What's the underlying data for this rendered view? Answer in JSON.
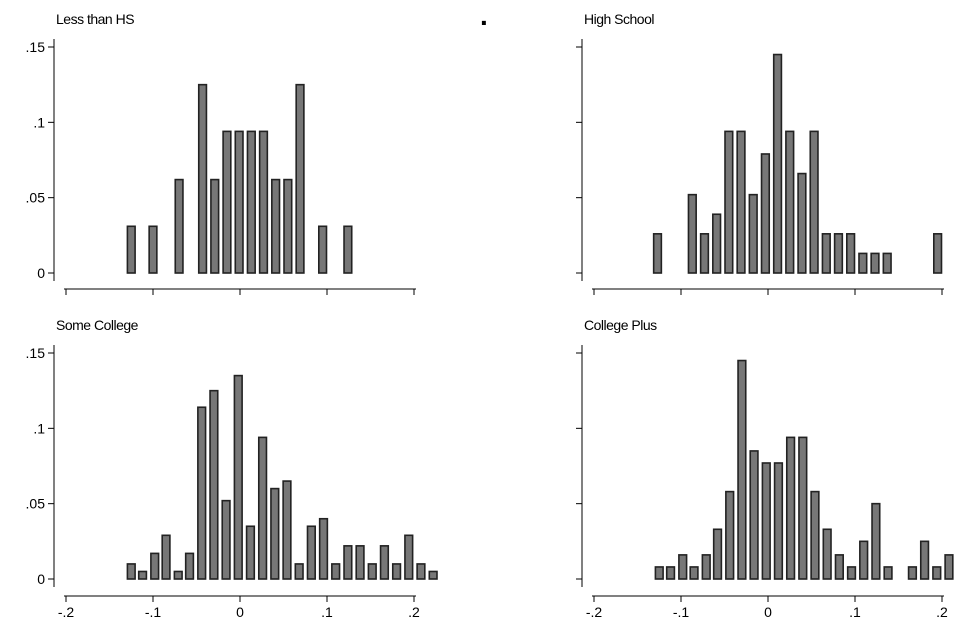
{
  "figure": {
    "center_mark": "."
  },
  "chart_data": [
    {
      "type": "bar",
      "title": "Less than HS",
      "xlim": [
        -0.2,
        0.2
      ],
      "ylim": [
        0,
        0.15
      ],
      "yticks": [
        0,
        0.05,
        0.1,
        0.15
      ],
      "ytick_labels": [
        "0",
        ".05",
        ".1",
        ".15"
      ],
      "xticks": [
        -0.2,
        -0.1,
        0,
        0.1,
        0.2
      ],
      "xtick_labels": [],
      "bar_width": 0.01,
      "bars": [
        {
          "x": -0.125,
          "y": 0.031
        },
        {
          "x": -0.1,
          "y": 0.031
        },
        {
          "x": -0.07,
          "y": 0.062
        },
        {
          "x": -0.043,
          "y": 0.125
        },
        {
          "x": -0.029,
          "y": 0.062
        },
        {
          "x": -0.015,
          "y": 0.094
        },
        {
          "x": -0.001,
          "y": 0.094
        },
        {
          "x": 0.013,
          "y": 0.094
        },
        {
          "x": 0.027,
          "y": 0.094
        },
        {
          "x": 0.041,
          "y": 0.062
        },
        {
          "x": 0.055,
          "y": 0.062
        },
        {
          "x": 0.069,
          "y": 0.125
        },
        {
          "x": 0.095,
          "y": 0.031
        },
        {
          "x": 0.124,
          "y": 0.031
        }
      ]
    },
    {
      "type": "bar",
      "title": "High School",
      "xlim": [
        -0.2,
        0.2
      ],
      "ylim": [
        0,
        0.15
      ],
      "yticks": [
        0,
        0.05,
        0.1,
        0.15
      ],
      "ytick_labels": [],
      "xticks": [
        -0.2,
        -0.1,
        0,
        0.1,
        0.2
      ],
      "xtick_labels": [],
      "bar_width": 0.01,
      "bars": [
        {
          "x": -0.127,
          "y": 0.026
        },
        {
          "x": -0.087,
          "y": 0.052
        },
        {
          "x": -0.073,
          "y": 0.026
        },
        {
          "x": -0.059,
          "y": 0.039
        },
        {
          "x": -0.045,
          "y": 0.094
        },
        {
          "x": -0.031,
          "y": 0.094
        },
        {
          "x": -0.017,
          "y": 0.052
        },
        {
          "x": -0.003,
          "y": 0.079
        },
        {
          "x": 0.011,
          "y": 0.145
        },
        {
          "x": 0.025,
          "y": 0.094
        },
        {
          "x": 0.039,
          "y": 0.066
        },
        {
          "x": 0.053,
          "y": 0.094
        },
        {
          "x": 0.067,
          "y": 0.026
        },
        {
          "x": 0.081,
          "y": 0.026
        },
        {
          "x": 0.095,
          "y": 0.026
        },
        {
          "x": 0.109,
          "y": 0.013
        },
        {
          "x": 0.123,
          "y": 0.013
        },
        {
          "x": 0.137,
          "y": 0.013
        },
        {
          "x": 0.195,
          "y": 0.026
        }
      ]
    },
    {
      "type": "bar",
      "title": "Some College",
      "xlim": [
        -0.2,
        0.2
      ],
      "ylim": [
        0,
        0.15
      ],
      "yticks": [
        0,
        0.05,
        0.1,
        0.15
      ],
      "ytick_labels": [
        "0",
        ".05",
        ".1",
        ".15"
      ],
      "xticks": [
        -0.2,
        -0.1,
        0,
        0.1,
        0.2
      ],
      "xtick_labels": [
        "-.2",
        "-.1",
        "0",
        ".1",
        ".2"
      ],
      "bar_width": 0.01,
      "bars": [
        {
          "x": -0.125,
          "y": 0.01
        },
        {
          "x": -0.112,
          "y": 0.005
        },
        {
          "x": -0.098,
          "y": 0.017
        },
        {
          "x": -0.085,
          "y": 0.029
        },
        {
          "x": -0.071,
          "y": 0.005
        },
        {
          "x": -0.058,
          "y": 0.017
        },
        {
          "x": -0.044,
          "y": 0.114
        },
        {
          "x": -0.03,
          "y": 0.125
        },
        {
          "x": -0.016,
          "y": 0.052
        },
        {
          "x": -0.002,
          "y": 0.135
        },
        {
          "x": 0.012,
          "y": 0.035
        },
        {
          "x": 0.026,
          "y": 0.094
        },
        {
          "x": 0.04,
          "y": 0.06
        },
        {
          "x": 0.054,
          "y": 0.065
        },
        {
          "x": 0.068,
          "y": 0.01
        },
        {
          "x": 0.082,
          "y": 0.035
        },
        {
          "x": 0.096,
          "y": 0.04
        },
        {
          "x": 0.11,
          "y": 0.01
        },
        {
          "x": 0.124,
          "y": 0.022
        },
        {
          "x": 0.138,
          "y": 0.022
        },
        {
          "x": 0.152,
          "y": 0.01
        },
        {
          "x": 0.166,
          "y": 0.022
        },
        {
          "x": 0.18,
          "y": 0.01
        },
        {
          "x": 0.194,
          "y": 0.029
        },
        {
          "x": 0.208,
          "y": 0.01
        },
        {
          "x": 0.222,
          "y": 0.005
        }
      ]
    },
    {
      "type": "bar",
      "title": "College Plus",
      "xlim": [
        -0.2,
        0.2
      ],
      "ylim": [
        0,
        0.15
      ],
      "yticks": [
        0,
        0.05,
        0.1,
        0.15
      ],
      "ytick_labels": [],
      "xticks": [
        -0.2,
        -0.1,
        0,
        0.1,
        0.2
      ],
      "xtick_labels": [
        "-.2",
        "-.1",
        "0",
        ".1",
        ".2"
      ],
      "bar_width": 0.01,
      "bars": [
        {
          "x": -0.125,
          "y": 0.008
        },
        {
          "x": -0.112,
          "y": 0.008
        },
        {
          "x": -0.098,
          "y": 0.016
        },
        {
          "x": -0.085,
          "y": 0.008
        },
        {
          "x": -0.071,
          "y": 0.016
        },
        {
          "x": -0.058,
          "y": 0.033
        },
        {
          "x": -0.044,
          "y": 0.058
        },
        {
          "x": -0.03,
          "y": 0.145
        },
        {
          "x": -0.016,
          "y": 0.085
        },
        {
          "x": -0.002,
          "y": 0.077
        },
        {
          "x": 0.012,
          "y": 0.077
        },
        {
          "x": 0.026,
          "y": 0.094
        },
        {
          "x": 0.04,
          "y": 0.094
        },
        {
          "x": 0.054,
          "y": 0.058
        },
        {
          "x": 0.068,
          "y": 0.033
        },
        {
          "x": 0.082,
          "y": 0.016
        },
        {
          "x": 0.096,
          "y": 0.008
        },
        {
          "x": 0.11,
          "y": 0.025
        },
        {
          "x": 0.124,
          "y": 0.05
        },
        {
          "x": 0.138,
          "y": 0.008
        },
        {
          "x": 0.166,
          "y": 0.008
        },
        {
          "x": 0.18,
          "y": 0.025
        },
        {
          "x": 0.194,
          "y": 0.008
        },
        {
          "x": 0.208,
          "y": 0.016
        }
      ]
    }
  ]
}
